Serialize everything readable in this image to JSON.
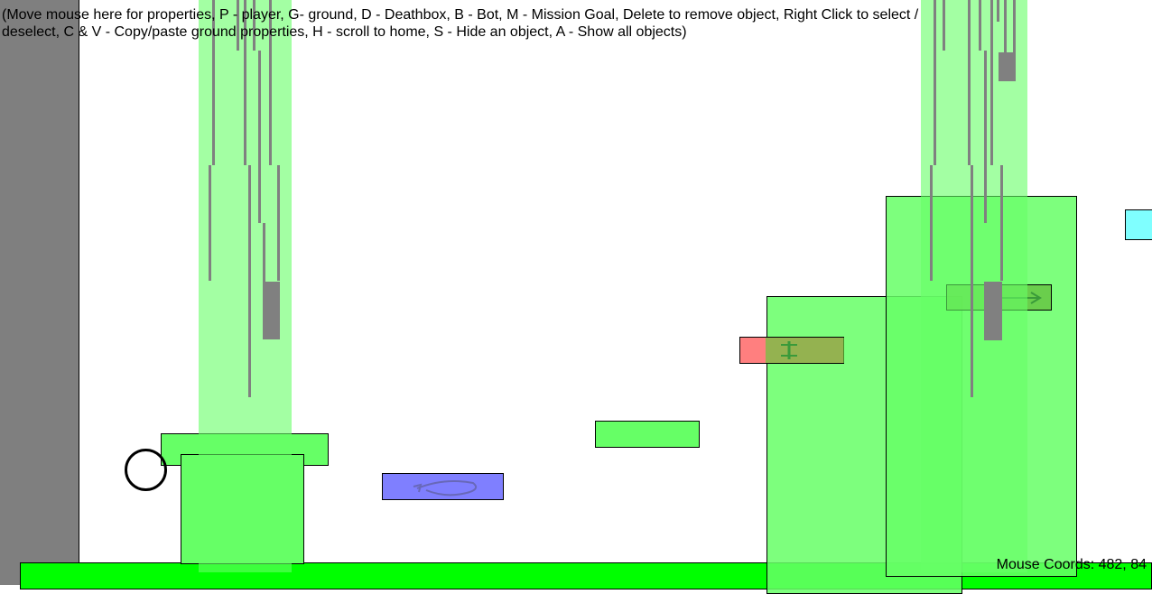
{
  "help": {
    "text": "(Move mouse here for properties, P - player, G- ground, D - Deathbox, B - Bot, M - Mission Goal, Delete to remove object, Right Click to select / deselect, C & V - Copy/paste ground properties, H - scroll to home, S - Hide an object, A - Show all objects)"
  },
  "status": {
    "mouse_coords": "Mouse Coords: 482, 84"
  },
  "colors": {
    "ground": "#66ff66",
    "floor": "#00ff00",
    "deathbox": "#ff7f7f",
    "bot": "#7f7fff",
    "mission_goal": "#7fffff",
    "light_beam": "#66ff66",
    "margin": "#7f7f7f"
  },
  "icons": {
    "player": "circle-outline",
    "bot": "rotate-arrow-icon",
    "moving_platform": "right-arrow-icon",
    "elevator": "vertical-arrow-icon"
  }
}
